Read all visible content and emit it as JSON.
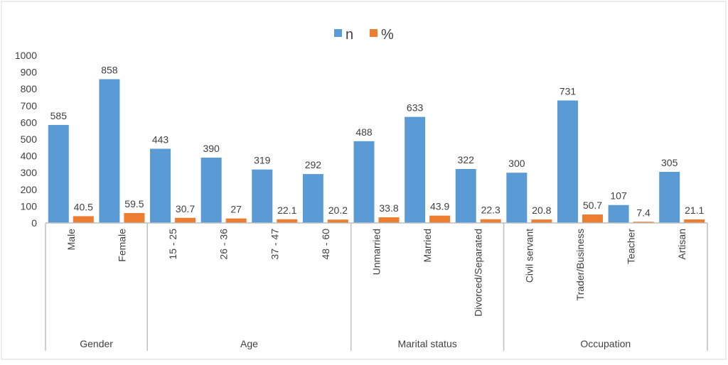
{
  "chart_data": {
    "type": "bar",
    "title": "",
    "xlabel": "",
    "ylabel": "",
    "ylim": [
      0,
      1000
    ],
    "yticks": [
      0,
      100,
      200,
      300,
      400,
      500,
      600,
      700,
      800,
      900,
      1000
    ],
    "grid": false,
    "legend_position": "top",
    "groups": [
      {
        "label": "Gender",
        "categories": [
          "Male",
          "Female"
        ]
      },
      {
        "label": "Age",
        "categories": [
          "15 - 25",
          "26 - 36",
          "37 - 47",
          "48 - 60"
        ]
      },
      {
        "label": "Marital status",
        "categories": [
          "Unmarried",
          "Married",
          "Divorced/Separated"
        ]
      },
      {
        "label": "Occupation",
        "categories": [
          "Civil servant",
          "Trader/Business",
          "Teacher",
          "Artisan"
        ]
      }
    ],
    "categories": [
      "Male",
      "Female",
      "15 - 25",
      "26 - 36",
      "37 - 47",
      "48 - 60",
      "Unmarried",
      "Married",
      "Divorced/Separated",
      "Civil servant",
      "Trader/Business",
      "Teacher",
      "Artisan"
    ],
    "series": [
      {
        "name": "n",
        "color": "#5B9BD5",
        "values": [
          585,
          858,
          443,
          390,
          319,
          292,
          488,
          633,
          322,
          300,
          731,
          107,
          305
        ]
      },
      {
        "name": "%",
        "color": "#ED7D31",
        "values": [
          40.5,
          59.5,
          30.7,
          27,
          22.1,
          20.2,
          33.8,
          43.9,
          22.3,
          20.8,
          50.7,
          7.4,
          21.1
        ]
      }
    ]
  }
}
